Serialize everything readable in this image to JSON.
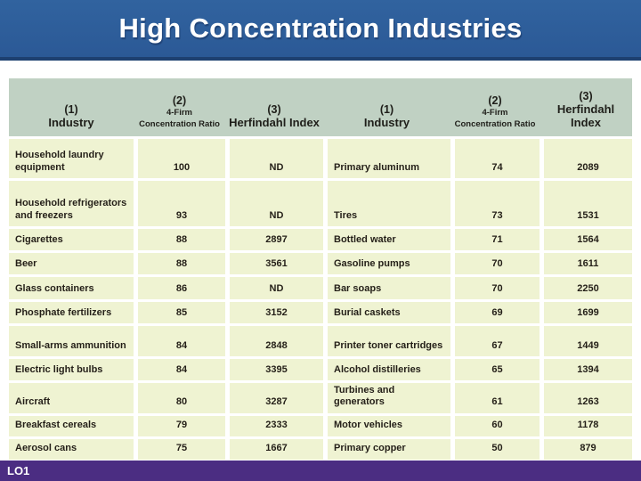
{
  "slide": {
    "title": "High Concentration Industries",
    "footer": "LO1"
  },
  "colors": {
    "title_bar_blue": "#2d5d9d",
    "title_bar_edge": "#1d4070",
    "header_green": "#c0d1c3",
    "cell_yellow": "#eff3d2",
    "footer_purple": "#4b2d82",
    "text_dark": "#241f18"
  },
  "table": {
    "header": {
      "col1_num": "(1)",
      "col1_label": "Industry",
      "col2_num": "(2)",
      "col2_label": "4-Firm Concentration Ratio",
      "col3_num": "(3)",
      "col3_label": "Herfindahl Index"
    },
    "left_rows": [
      {
        "industry": "Household laundry equipment",
        "ratio": "100",
        "index": "ND"
      },
      {
        "industry": "Household refrigerators and freezers",
        "ratio": "93",
        "index": "ND"
      },
      {
        "industry": "Cigarettes",
        "ratio": "88",
        "index": "2897"
      },
      {
        "industry": "Beer",
        "ratio": "88",
        "index": "3561"
      },
      {
        "industry": "Glass containers",
        "ratio": "86",
        "index": "ND"
      },
      {
        "industry": "Phosphate fertilizers",
        "ratio": "85",
        "index": "3152"
      },
      {
        "industry": "Small-arms ammunition",
        "ratio": "84",
        "index": "2848"
      },
      {
        "industry": "Electric light bulbs",
        "ratio": "84",
        "index": "3395"
      },
      {
        "industry": "Aircraft",
        "ratio": "80",
        "index": "3287"
      },
      {
        "industry": "Breakfast cereals",
        "ratio": "79",
        "index": "2333"
      },
      {
        "industry": "Aerosol cans",
        "ratio": "75",
        "index": "1667"
      }
    ],
    "right_rows": [
      {
        "industry": "Primary aluminum",
        "ratio": "74",
        "index": "2089"
      },
      {
        "industry": "Tires",
        "ratio": "73",
        "index": "1531"
      },
      {
        "industry": "Bottled water",
        "ratio": "71",
        "index": "1564"
      },
      {
        "industry": "Gasoline pumps",
        "ratio": "70",
        "index": "1611"
      },
      {
        "industry": "Bar soaps",
        "ratio": "70",
        "index": "2250"
      },
      {
        "industry": "Burial caskets",
        "ratio": "69",
        "index": "1699"
      },
      {
        "industry": "Printer toner cartridges",
        "ratio": "67",
        "index": "1449"
      },
      {
        "industry": "Alcohol distilleries",
        "ratio": "65",
        "index": "1394"
      },
      {
        "industry": "Turbines and generators",
        "ratio": "61",
        "index": "1263"
      },
      {
        "industry": "Motor vehicles",
        "ratio": "60",
        "index": "1178"
      },
      {
        "industry": "Primary copper",
        "ratio": "50",
        "index": "879"
      }
    ]
  }
}
